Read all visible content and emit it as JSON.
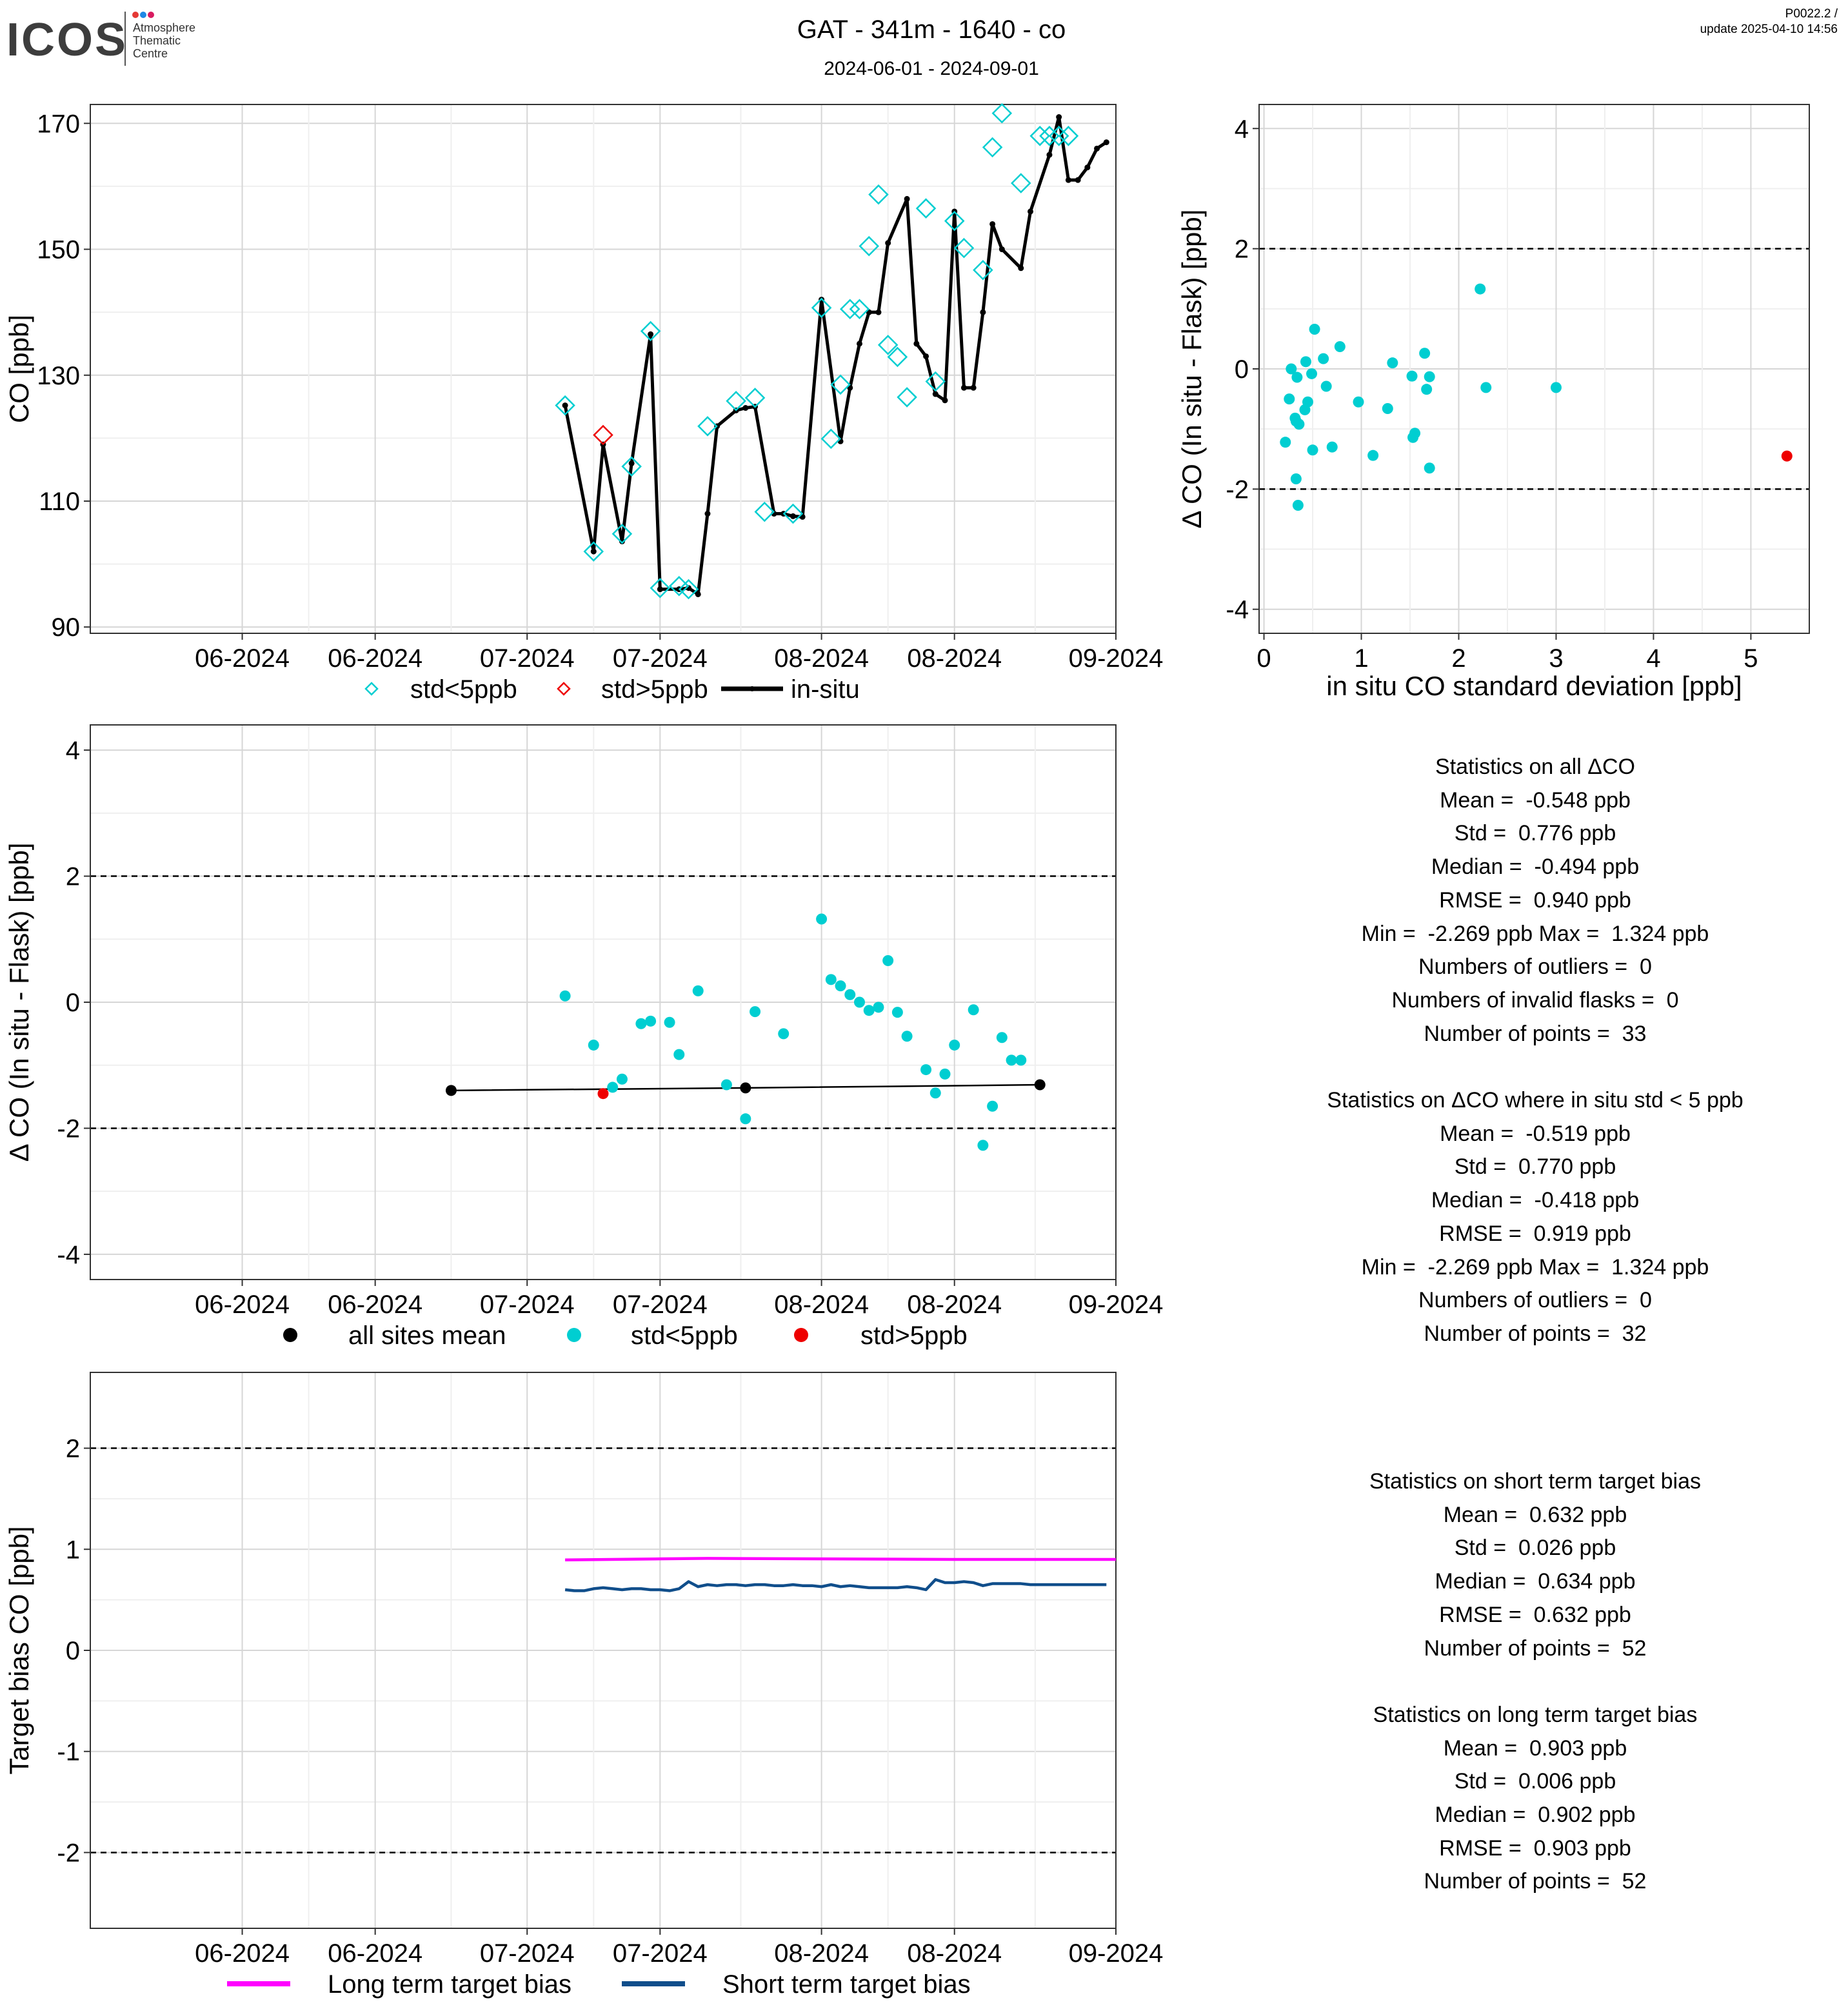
{
  "header": {
    "logo_text": "ICOS",
    "logo_sub": [
      "Atmosphere",
      "Thematic",
      "Centre"
    ],
    "logo_dot_colors": [
      "#e53935",
      "#1e88e5",
      "#d81b60"
    ],
    "title": "GAT - 341m - 1640 - co",
    "subtitle": "2024-06-01 - 2024-09-01",
    "version": "P0022.2 /",
    "update": "update  2025-04-10 14:56"
  },
  "colors": {
    "cyan": "#00CED1",
    "red": "#EE0000",
    "black": "#000000",
    "magenta": "#FF00FF",
    "navy": "#104E8B",
    "grid_major": "#D6D6D6",
    "grid_minor": "#EFEFEF"
  },
  "stats_flask": {
    "lines": [
      "Statistics on all ΔCO",
      "Mean =  -0.548 ppb",
      "Std =  0.776 ppb",
      "Median =  -0.494 ppb",
      "RMSE =  0.940 ppb",
      "Min =  -2.269 ppb Max =  1.324 ppb",
      "Numbers of outliers =  0",
      "Numbers of invalid flasks =  0",
      "Number of points =  33",
      "",
      "Statistics on ΔCO where in situ std < 5 ppb",
      "Mean =  -0.519 ppb",
      "Std =  0.770 ppb",
      "Median =  -0.418 ppb",
      "RMSE =  0.919 ppb",
      "Min =  -2.269 ppb Max =  1.324 ppb",
      "Numbers of outliers =  0",
      "Number of points =  32"
    ]
  },
  "stats_target": {
    "lines": [
      "Statistics on short term target bias",
      "Mean =  0.632 ppb",
      "Std =  0.026 ppb",
      "Median =  0.634 ppb",
      "RMSE =  0.632 ppb",
      "Number of points =  52",
      "",
      "Statistics on long term target bias",
      "Mean =  0.903 ppb",
      "Std =  0.006 ppb",
      "Median =  0.902 ppb",
      "RMSE =  0.903 ppb",
      "Number of points =  52"
    ]
  },
  "chart_data": [
    {
      "type": "line",
      "panel": "co_timeseries",
      "xlabel": "",
      "ylabel": "CO [ppb]",
      "xlim": [
        "2024-05-16",
        "2024-09-01"
      ],
      "ylim": [
        89,
        173
      ],
      "yticks": [
        90,
        110,
        130,
        150,
        170
      ],
      "xtick_dates": [
        "2024-06-01",
        "2024-06-15",
        "2024-07-01",
        "2024-07-15",
        "2024-08-01",
        "2024-08-15",
        "2024-09-01"
      ],
      "xtick_labels": [
        "06-2024",
        "06-2024",
        "07-2024",
        "07-2024",
        "08-2024",
        "08-2024",
        "09-2024"
      ],
      "legend": [
        "std<5ppb",
        "std>5ppb",
        "in-situ"
      ],
      "legend_position": "bottom",
      "grid": true,
      "series": [
        {
          "name": "in-situ",
          "x": [
            "2024-07-05",
            "2024-07-08",
            "2024-07-09",
            "2024-07-11",
            "2024-07-12",
            "2024-07-14",
            "2024-07-15",
            "2024-07-17",
            "2024-07-18",
            "2024-07-19",
            "2024-07-20",
            "2024-07-21",
            "2024-07-23",
            "2024-07-24",
            "2024-07-25",
            "2024-07-27",
            "2024-07-28",
            "2024-07-29",
            "2024-07-30",
            "2024-08-01",
            "2024-08-03",
            "2024-08-04",
            "2024-08-05",
            "2024-08-06",
            "2024-08-07",
            "2024-08-08",
            "2024-08-10",
            "2024-08-11",
            "2024-08-12",
            "2024-08-13",
            "2024-08-14",
            "2024-08-15",
            "2024-08-16",
            "2024-08-17",
            "2024-08-18",
            "2024-08-19",
            "2024-08-20",
            "2024-08-22",
            "2024-08-23",
            "2024-08-25",
            "2024-08-26",
            "2024-08-27",
            "2024-08-28",
            "2024-08-29",
            "2024-08-30",
            "2024-08-31"
          ],
          "values": [
            125.2,
            102.0,
            119.0,
            103.6,
            116.0,
            136.5,
            96.0,
            96.0,
            96.2,
            95.2,
            108.0,
            121.9,
            124.4,
            124.8,
            125.0,
            108.0,
            108.0,
            107.6,
            107.5,
            142.0,
            119.5,
            128.0,
            135.0,
            140.0,
            140.0,
            151.0,
            158.0,
            135.0,
            133.0,
            127.0,
            126.0,
            156.0,
            128.0,
            128.0,
            140.0,
            154.0,
            150.0,
            147.0,
            156.0,
            165.0,
            171.0,
            161.0,
            161.0,
            163.0,
            166.0,
            167.0
          ]
        },
        {
          "name": "std<5ppb",
          "x": [
            "2024-07-05",
            "2024-07-08",
            "2024-07-11",
            "2024-07-12",
            "2024-07-14",
            "2024-07-15",
            "2024-07-17",
            "2024-07-18",
            "2024-07-20",
            "2024-07-23",
            "2024-07-25",
            "2024-07-26",
            "2024-07-29",
            "2024-08-01",
            "2024-08-02",
            "2024-08-03",
            "2024-08-04",
            "2024-08-05",
            "2024-08-06",
            "2024-08-07",
            "2024-08-08",
            "2024-08-09",
            "2024-08-10",
            "2024-08-12",
            "2024-08-13",
            "2024-08-15",
            "2024-08-16",
            "2024-08-18",
            "2024-08-19",
            "2024-08-20",
            "2024-08-22",
            "2024-08-24",
            "2024-08-25",
            "2024-08-26",
            "2024-08-27"
          ],
          "values": [
            125.2,
            102.0,
            104.8,
            115.5,
            137.0,
            96.2,
            96.5,
            96.0,
            121.9,
            125.9,
            126.4,
            108.3,
            108.0,
            140.7,
            119.9,
            128.5,
            140.5,
            140.5,
            150.5,
            158.7,
            134.8,
            132.9,
            126.5,
            156.5,
            129.0,
            154.5,
            150.2,
            146.7,
            166.2,
            171.6,
            160.5,
            168.0,
            168.0,
            168.0,
            168.0
          ]
        },
        {
          "name": "std>5ppb",
          "x": [
            "2024-07-09"
          ],
          "values": [
            120.5
          ]
        }
      ]
    },
    {
      "type": "scatter",
      "panel": "delta_vs_std",
      "xlabel": "in situ CO standard deviation [ppb]",
      "ylabel": "Δ CO (In situ - Flask) [ppb]",
      "xlim": [
        -0.05,
        5.6
      ],
      "ylim": [
        -4.4,
        4.4
      ],
      "xticks": [
        0,
        1,
        2,
        3,
        4,
        5
      ],
      "yticks": [
        -4,
        -2,
        0,
        2,
        4
      ],
      "hlines": [
        2,
        -2
      ],
      "grid": true,
      "series": [
        {
          "name": "std<5ppb",
          "x": [
            0.22,
            0.26,
            0.28,
            0.32,
            0.33,
            0.33,
            0.34,
            0.35,
            0.36,
            0.42,
            0.43,
            0.45,
            0.49,
            0.5,
            0.52,
            0.61,
            0.64,
            0.7,
            0.78,
            0.97,
            1.12,
            1.27,
            1.32,
            1.52,
            1.53,
            1.55,
            1.65,
            1.67,
            1.7,
            1.7,
            2.22,
            2.28,
            3.0
          ],
          "values": [
            -1.22,
            -0.5,
            0.0,
            -0.82,
            -0.87,
            -1.83,
            -0.14,
            -2.27,
            -0.92,
            -0.68,
            0.12,
            -0.55,
            -0.08,
            -1.35,
            0.66,
            0.17,
            -0.29,
            -1.3,
            0.37,
            -0.55,
            -1.44,
            -0.66,
            0.1,
            -0.12,
            -1.14,
            -1.07,
            0.26,
            -0.34,
            -1.65,
            -0.13,
            1.33,
            -0.31,
            -0.31
          ]
        },
        {
          "name": "std>5ppb",
          "x": [
            5.37
          ],
          "values": [
            -1.45
          ]
        }
      ]
    },
    {
      "type": "scatter",
      "panel": "delta_timeseries",
      "xlabel": "",
      "ylabel": "Δ CO (In situ - Flask) [ppb]",
      "xlim": [
        "2024-05-16",
        "2024-09-01"
      ],
      "ylim": [
        -4.4,
        4.4
      ],
      "yticks": [
        -4,
        -2,
        0,
        2,
        4
      ],
      "hlines": [
        2,
        -2
      ],
      "xtick_dates": [
        "2024-06-01",
        "2024-06-15",
        "2024-07-01",
        "2024-07-15",
        "2024-08-01",
        "2024-08-15",
        "2024-09-01"
      ],
      "xtick_labels": [
        "06-2024",
        "06-2024",
        "07-2024",
        "07-2024",
        "08-2024",
        "08-2024",
        "09-2024"
      ],
      "legend": [
        "all sites mean",
        "std<5ppb",
        "std>5ppb"
      ],
      "legend_position": "bottom",
      "grid": true,
      "series": [
        {
          "name": "all sites mean",
          "x": [
            "2024-06-23",
            "2024-07-24",
            "2024-08-24"
          ],
          "values": [
            -1.4,
            -1.36,
            -1.31
          ]
        },
        {
          "name": "std<5ppb",
          "x": [
            "2024-07-05",
            "2024-07-08",
            "2024-07-10",
            "2024-07-11",
            "2024-07-13",
            "2024-07-14",
            "2024-07-16",
            "2024-07-17",
            "2024-07-19",
            "2024-07-22",
            "2024-07-24",
            "2024-07-25",
            "2024-07-28",
            "2024-08-01",
            "2024-08-02",
            "2024-08-03",
            "2024-08-04",
            "2024-08-05",
            "2024-08-06",
            "2024-08-07",
            "2024-08-08",
            "2024-08-09",
            "2024-08-10",
            "2024-08-12",
            "2024-08-13",
            "2024-08-14",
            "2024-08-15",
            "2024-08-17",
            "2024-08-18",
            "2024-08-19",
            "2024-08-20",
            "2024-08-21",
            "2024-08-22"
          ],
          "values": [
            0.1,
            -0.68,
            -1.35,
            -1.22,
            -0.34,
            -0.3,
            -0.32,
            -0.83,
            0.18,
            -1.31,
            -1.85,
            -0.15,
            -0.5,
            1.32,
            0.36,
            0.26,
            0.12,
            0.0,
            -0.13,
            -0.08,
            0.66,
            -0.16,
            -0.54,
            -1.07,
            -1.44,
            -1.14,
            -0.68,
            -0.12,
            -2.27,
            -1.65,
            -0.56,
            -0.92,
            -0.92
          ]
        },
        {
          "name": "std>5ppb",
          "x": [
            "2024-07-09"
          ],
          "values": [
            -1.45
          ]
        }
      ]
    },
    {
      "type": "line",
      "panel": "target_bias",
      "xlabel": "",
      "ylabel": "Target bias CO [ppb]",
      "xlim": [
        "2024-05-16",
        "2024-09-01"
      ],
      "ylim": [
        -2.75,
        2.75
      ],
      "yticks": [
        -2,
        -1,
        0,
        1,
        2
      ],
      "hlines": [
        2,
        -2
      ],
      "xtick_dates": [
        "2024-06-01",
        "2024-06-15",
        "2024-07-01",
        "2024-07-15",
        "2024-08-01",
        "2024-08-15",
        "2024-09-01"
      ],
      "xtick_labels": [
        "06-2024",
        "06-2024",
        "07-2024",
        "07-2024",
        "08-2024",
        "08-2024",
        "09-2024"
      ],
      "legend": [
        "Long term target bias",
        "Short term target bias"
      ],
      "legend_position": "bottom",
      "grid": true,
      "series": [
        {
          "name": "Long term target bias",
          "x": [
            "2024-07-05",
            "2024-07-15",
            "2024-07-20",
            "2024-08-01",
            "2024-08-15",
            "2024-09-01"
          ],
          "values": [
            0.895,
            0.905,
            0.91,
            0.905,
            0.9,
            0.9
          ]
        },
        {
          "name": "Short term target bias",
          "x": [
            "2024-07-05",
            "2024-07-06",
            "2024-07-07",
            "2024-07-08",
            "2024-07-09",
            "2024-07-10",
            "2024-07-11",
            "2024-07-12",
            "2024-07-13",
            "2024-07-14",
            "2024-07-15",
            "2024-07-16",
            "2024-07-17",
            "2024-07-18",
            "2024-07-19",
            "2024-07-20",
            "2024-07-21",
            "2024-07-22",
            "2024-07-23",
            "2024-07-24",
            "2024-07-25",
            "2024-07-26",
            "2024-07-27",
            "2024-07-28",
            "2024-07-29",
            "2024-07-30",
            "2024-07-31",
            "2024-08-01",
            "2024-08-02",
            "2024-08-03",
            "2024-08-04",
            "2024-08-05",
            "2024-08-06",
            "2024-08-07",
            "2024-08-08",
            "2024-08-09",
            "2024-08-10",
            "2024-08-11",
            "2024-08-12",
            "2024-08-13",
            "2024-08-14",
            "2024-08-15",
            "2024-08-16",
            "2024-08-17",
            "2024-08-18",
            "2024-08-19",
            "2024-08-20",
            "2024-08-21",
            "2024-08-22",
            "2024-08-23",
            "2024-08-25",
            "2024-08-31"
          ],
          "values": [
            0.6,
            0.59,
            0.59,
            0.61,
            0.62,
            0.61,
            0.6,
            0.61,
            0.61,
            0.6,
            0.6,
            0.59,
            0.61,
            0.68,
            0.63,
            0.65,
            0.64,
            0.65,
            0.65,
            0.64,
            0.65,
            0.65,
            0.64,
            0.64,
            0.65,
            0.64,
            0.64,
            0.63,
            0.65,
            0.63,
            0.64,
            0.63,
            0.62,
            0.62,
            0.62,
            0.62,
            0.63,
            0.62,
            0.6,
            0.7,
            0.67,
            0.67,
            0.68,
            0.67,
            0.64,
            0.66,
            0.66,
            0.66,
            0.66,
            0.65,
            0.65,
            0.65
          ]
        }
      ]
    }
  ]
}
